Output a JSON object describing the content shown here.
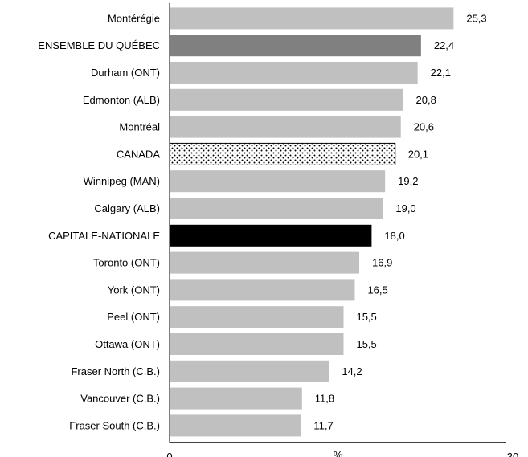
{
  "chart_data": {
    "type": "bar",
    "orientation": "horizontal",
    "categories": [
      "Montérégie",
      "ENSEMBLE DU QUÉBEC",
      "Durham (ONT)",
      "Edmonton (ALB)",
      "Montréal",
      "CANADA",
      "Winnipeg (MAN)",
      "Calgary (ALB)",
      "CAPITALE-NATIONALE",
      "Toronto (ONT)",
      "York (ONT)",
      "Peel (ONT)",
      "Ottawa (ONT)",
      "Fraser North (C.B.)",
      "Vancouver (C.B.)",
      "Fraser South (C.B.)"
    ],
    "values": [
      25.3,
      22.4,
      22.1,
      20.8,
      20.6,
      20.1,
      19.2,
      19.0,
      18.0,
      16.9,
      16.5,
      15.5,
      15.5,
      14.2,
      11.8,
      11.7
    ],
    "value_labels": [
      "25,3",
      "22,4",
      "22,1",
      "20,8",
      "20,6",
      "20,1",
      "19,2",
      "19,0",
      "18,0",
      "16,9",
      "16,5",
      "15,5",
      "15,5",
      "14,2",
      "11,8",
      "11,7"
    ],
    "styles": [
      "default",
      "quebec",
      "default",
      "default",
      "default",
      "canada",
      "default",
      "default",
      "capitale",
      "default",
      "default",
      "default",
      "default",
      "default",
      "default",
      "default"
    ],
    "colors": {
      "default": "#c0c0c0",
      "quebec": "#808080",
      "canada_fill": "#ffffff",
      "canada_dots": "#000000",
      "capitale": "#000000",
      "axis": "#000000"
    },
    "xlim": [
      0,
      30
    ],
    "x_ticks": [
      "0",
      "30"
    ],
    "xlabel": "%",
    "title": "",
    "grid": false,
    "legend": "none"
  }
}
